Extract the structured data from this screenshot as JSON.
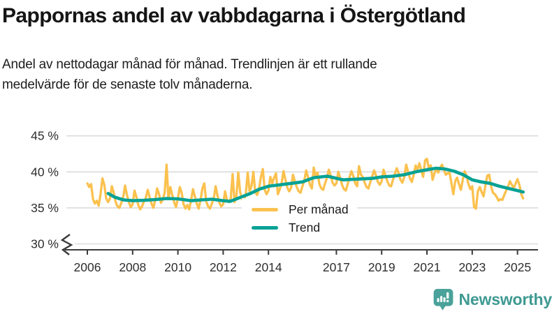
{
  "header": {
    "title": "Pappornas andel av vabbdagarna i Östergötland",
    "subtitle": "Andel av nettodagar månad för månad. Trendlinjen är ett rullande\nmedelvärde för de senaste tolv månaderna."
  },
  "legend": {
    "monthly": "Per månad",
    "trend": "Trend"
  },
  "branding": {
    "name": "Newsworthy",
    "icon": "newsworthy-chart-bubble-icon",
    "color": "#3F9A92",
    "icon_color": "#4AA29A"
  },
  "colors": {
    "monthly_line": "#FBC14E",
    "trend_line": "#06A295",
    "grid": "#DBDBDB",
    "axis": "#3A3A3A",
    "tick_text": "#2e2e2e"
  },
  "chart_data": {
    "type": "line",
    "title": "Pappornas andel av vabbdagarna i Östergötland",
    "xlabel": "",
    "ylabel": "%",
    "ylim": [
      30,
      45
    ],
    "xlim_years": [
      2005.2,
      2025.9
    ],
    "grid": true,
    "axis_break_at_bottom": true,
    "legend_position": "inside-center",
    "yticks": [
      {
        "value": 45,
        "label": "45 %"
      },
      {
        "value": 40,
        "label": "40 %"
      },
      {
        "value": 35,
        "label": "35 %"
      },
      {
        "value": 30,
        "label": "30 %"
      }
    ],
    "xticks": [
      {
        "value": 2006,
        "label": "2006"
      },
      {
        "value": 2008,
        "label": "2008"
      },
      {
        "value": 2010,
        "label": "2010"
      },
      {
        "value": 2012,
        "label": "2012"
      },
      {
        "value": 2014,
        "label": "2014"
      },
      {
        "value": 2017,
        "label": "2017"
      },
      {
        "value": 2019,
        "label": "2019"
      },
      {
        "value": 2021,
        "label": "2021"
      },
      {
        "value": 2023,
        "label": "2023"
      },
      {
        "value": 2025,
        "label": "2025"
      }
    ],
    "series": [
      {
        "name": "Per månad",
        "color": "#FBC14E",
        "sampling": "monthly",
        "start_year": 2006,
        "start_month": 1,
        "values": [
          38.4,
          37.9,
          38.3,
          36.2,
          35.6,
          36.0,
          35.3,
          36.9,
          39.1,
          38.2,
          36.3,
          35.8,
          36.3,
          38.0,
          37.1,
          35.8,
          35.2,
          35.0,
          35.7,
          36.5,
          38.1,
          36.8,
          35.8,
          35.1,
          35.5,
          37.4,
          36.5,
          35.4,
          34.8,
          35.2,
          35.9,
          36.4,
          37.5,
          36.5,
          35.6,
          35.0,
          36.1,
          37.7,
          36.9,
          35.7,
          36.2,
          37.1,
          41.0,
          36.2,
          37.9,
          36.8,
          35.8,
          35.1,
          36.3,
          37.9,
          37.1,
          35.5,
          34.9,
          35.4,
          34.8,
          36.1,
          37.6,
          36.6,
          35.6,
          34.9,
          36.1,
          37.7,
          38.4,
          35.9,
          35.2,
          34.9,
          35.6,
          36.3,
          38.0,
          36.7,
          35.7,
          35.2,
          35.5,
          37.3,
          36.1,
          35.8,
          36.3,
          39.7,
          35.8,
          36.6,
          39.9,
          37.2,
          36.2,
          35.8,
          37.0,
          39.9,
          37.3,
          38.0,
          40.0,
          37.2,
          36.8,
          37.6,
          39.3,
          40.4,
          37.5,
          36.9,
          37.4,
          39.3,
          38.4,
          39.2,
          39.8,
          36.9,
          37.6,
          38.5,
          40.1,
          38.9,
          37.8,
          37.3,
          37.8,
          39.6,
          38.7,
          37.9,
          37.3,
          37.1,
          38.0,
          38.8,
          40.2,
          39.2,
          38.2,
          37.7,
          40.6,
          39.4,
          39.9,
          38.3,
          37.7,
          37.5,
          38.4,
          39.2,
          40.3,
          39.5,
          38.5,
          38.1,
          38.4,
          40.0,
          39.2,
          38.2,
          37.6,
          37.4,
          38.3,
          39.3,
          40.1,
          39.4,
          38.4,
          38.0,
          40.8,
          39.6,
          39.3,
          38.5,
          37.9,
          37.7,
          38.6,
          39.4,
          40.2,
          39.5,
          38.6,
          38.2,
          38.7,
          40.3,
          39.5,
          38.7,
          38.1,
          38.0,
          38.9,
          39.7,
          40.5,
          39.8,
          38.9,
          38.5,
          39.3,
          41.0,
          40.0,
          39.1,
          38.6,
          39.6,
          40.9,
          40.3,
          41.2,
          40.2,
          39.3,
          41.6,
          41.8,
          40.5,
          40.9,
          38.9,
          39.8,
          40.4,
          39.9,
          40.6,
          41.0,
          40.3,
          39.6,
          39.8,
          39.9,
          38.4,
          36.9,
          38.7,
          39.2,
          38.3,
          37.5,
          38.9,
          40.1,
          39.4,
          38.3,
          37.6,
          38.0,
          35.1,
          34.9,
          37.3,
          37.9,
          37.2,
          36.6,
          38.1,
          39.5,
          39.6,
          38.0,
          37.1,
          36.9,
          36.5,
          36.0,
          36.2,
          36.1,
          36.8,
          37.4,
          38.0,
          38.7,
          38.2,
          37.7,
          38.4,
          39.0,
          38.2,
          36.9,
          36.3
        ]
      },
      {
        "name": "Trend",
        "color": "#06A295",
        "sampling": "rolling-12-month-mean-control-points",
        "points": [
          [
            2006.92,
            37.0
          ],
          [
            2007.2,
            36.5
          ],
          [
            2007.6,
            36.1
          ],
          [
            2008.0,
            36.0
          ],
          [
            2008.5,
            36.05
          ],
          [
            2009.0,
            36.15
          ],
          [
            2009.5,
            36.3
          ],
          [
            2010.0,
            36.25
          ],
          [
            2010.6,
            36.0
          ],
          [
            2011.0,
            36.1
          ],
          [
            2011.5,
            36.2
          ],
          [
            2012.0,
            36.0
          ],
          [
            2012.3,
            35.9
          ],
          [
            2012.8,
            36.5
          ],
          [
            2013.2,
            37.0
          ],
          [
            2013.6,
            37.6
          ],
          [
            2014.0,
            38.0
          ],
          [
            2014.5,
            38.2
          ],
          [
            2015.0,
            38.4
          ],
          [
            2015.5,
            38.6
          ],
          [
            2016.0,
            39.2
          ],
          [
            2016.6,
            39.4
          ],
          [
            2017.3,
            38.9
          ],
          [
            2018.0,
            39.0
          ],
          [
            2018.6,
            39.1
          ],
          [
            2019.0,
            39.3
          ],
          [
            2019.5,
            39.4
          ],
          [
            2020.0,
            39.6
          ],
          [
            2020.5,
            40.0
          ],
          [
            2021.0,
            40.3
          ],
          [
            2021.4,
            40.5
          ],
          [
            2021.8,
            40.4
          ],
          [
            2022.2,
            40.1
          ],
          [
            2022.6,
            39.6
          ],
          [
            2023.0,
            38.9
          ],
          [
            2023.4,
            38.6
          ],
          [
            2023.8,
            38.4
          ],
          [
            2024.2,
            38.0
          ],
          [
            2024.6,
            37.7
          ],
          [
            2025.0,
            37.4
          ],
          [
            2025.25,
            37.2
          ]
        ]
      }
    ]
  }
}
